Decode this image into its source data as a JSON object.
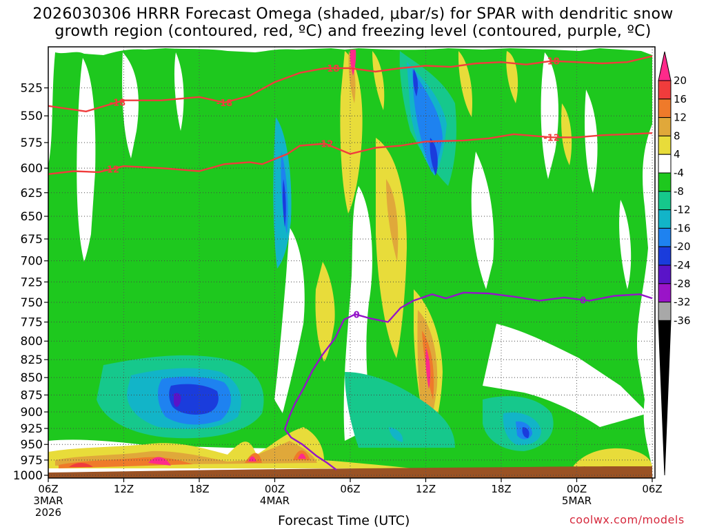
{
  "header": {
    "title_line1": "2026030306 HRRR Forecast Omega (shaded, μbar/s) for SPAR with dendritic snow",
    "title_line2": "growth region (contoured, red, ºC) and freezing level (contoured, purple, ºC)"
  },
  "footer": {
    "xaxis_title": "Forecast Time (UTC)",
    "credit": "coolwx.com/models"
  },
  "chart_data": {
    "type": "heatmap",
    "title": "2026030306 HRRR Forecast Omega (shaded, μbar/s) for SPAR with dendritic snow growth region (contoured, red, ºC) and freezing level (contoured, purple, ºC)",
    "xlabel": "Forecast Time (UTC)",
    "ylabel": "",
    "x_range_hours": [
      0,
      48
    ],
    "y_range_hpa": [
      1000,
      500
    ],
    "y_scale": "log-pressure",
    "grid": true,
    "x_ticks": [
      {
        "hour": 0,
        "label": "06Z",
        "sub1": "3MAR",
        "sub2": "2026"
      },
      {
        "hour": 6,
        "label": "12Z",
        "sub1": "",
        "sub2": ""
      },
      {
        "hour": 12,
        "label": "18Z",
        "sub1": "",
        "sub2": ""
      },
      {
        "hour": 18,
        "label": "00Z",
        "sub1": "4MAR",
        "sub2": ""
      },
      {
        "hour": 24,
        "label": "06Z",
        "sub1": "",
        "sub2": ""
      },
      {
        "hour": 30,
        "label": "12Z",
        "sub1": "",
        "sub2": ""
      },
      {
        "hour": 36,
        "label": "18Z",
        "sub1": "",
        "sub2": ""
      },
      {
        "hour": 42,
        "label": "00Z",
        "sub1": "5MAR",
        "sub2": ""
      },
      {
        "hour": 48,
        "label": "06Z",
        "sub1": "",
        "sub2": ""
      }
    ],
    "y_ticks": [
      525,
      550,
      575,
      600,
      625,
      650,
      675,
      700,
      725,
      750,
      775,
      800,
      825,
      850,
      875,
      900,
      925,
      950,
      975,
      1000
    ],
    "colorbar": {
      "labels": [
        "20",
        "16",
        "12",
        "8",
        "4",
        "-4",
        "-8",
        "-12",
        "-16",
        "-20",
        "-24",
        "-28",
        "-32",
        "-36"
      ],
      "colors": [
        "#ff2a8a",
        "#f03c3c",
        "#ef7a2a",
        "#e0a83a",
        "#e8dc3a",
        "#ffffff",
        "#1ec81e",
        "#16c88c",
        "#12b4c8",
        "#1e82f0",
        "#1a3cdc",
        "#5a14c8",
        "#9a14c8",
        "#a8a8a8",
        "#000000"
      ]
    },
    "omega_features": [
      {
        "name": "low-level ascent core",
        "hour": 11.5,
        "hpa": 885,
        "value": -24
      },
      {
        "name": "mid-level ascent",
        "hour": 18.5,
        "hpa": 640,
        "value": -24
      },
      {
        "name": "upper ascent",
        "hour": 28.5,
        "hpa": 590,
        "value": -24
      },
      {
        "name": "descent core",
        "hour": 30,
        "hpa": 830,
        "value": 20
      },
      {
        "name": "upper descent",
        "hour": 24,
        "hpa": 520,
        "value": 20
      },
      {
        "name": "near-surface descent",
        "hour": 9.5,
        "hpa": 985,
        "value": 20
      },
      {
        "name": "near-surface descent",
        "hour": 19.5,
        "hpa": 975,
        "value": 20
      },
      {
        "name": "near-surface descent",
        "hour": 22,
        "hpa": 975,
        "value": 20
      }
    ],
    "series": [
      {
        "name": "-18",
        "color": "#f03c3c",
        "points": [
          [
            0,
            541
          ],
          [
            3,
            546
          ],
          [
            6,
            536
          ],
          [
            9,
            536
          ],
          [
            12,
            533
          ],
          [
            14,
            538
          ],
          [
            16,
            532
          ],
          [
            18,
            520
          ],
          [
            20,
            512
          ],
          [
            22,
            508
          ],
          [
            24,
            508
          ],
          [
            26,
            511
          ],
          [
            28,
            508
          ],
          [
            30,
            506
          ],
          [
            32,
            507
          ],
          [
            34,
            504
          ],
          [
            36,
            503
          ],
          [
            38,
            505
          ],
          [
            40,
            502
          ],
          [
            42,
            503
          ],
          [
            44,
            504
          ],
          [
            46,
            503
          ],
          [
            48,
            498
          ]
        ]
      },
      {
        "name": "-12",
        "color": "#f03c3c",
        "points": [
          [
            0,
            606
          ],
          [
            2,
            603
          ],
          [
            4,
            604
          ],
          [
            6,
            598
          ],
          [
            9,
            600
          ],
          [
            12,
            603
          ],
          [
            14,
            596
          ],
          [
            16,
            594
          ],
          [
            17,
            596
          ],
          [
            19,
            586
          ],
          [
            20,
            578
          ],
          [
            22,
            576
          ],
          [
            24,
            586
          ],
          [
            26,
            580
          ],
          [
            28,
            578
          ],
          [
            30,
            574
          ],
          [
            33,
            573
          ],
          [
            35,
            571
          ],
          [
            37,
            567
          ],
          [
            40,
            570
          ],
          [
            42,
            570
          ],
          [
            44,
            568
          ],
          [
            46,
            567
          ],
          [
            48,
            566
          ]
        ]
      },
      {
        "name": "0",
        "color": "#9414c8",
        "points": [
          [
            22.9,
            991
          ],
          [
            22.2,
            980
          ],
          [
            21.3,
            968
          ],
          [
            20.2,
            950
          ],
          [
            19.3,
            939
          ],
          [
            18.8,
            926
          ],
          [
            19.2,
            905
          ],
          [
            19.6,
            888
          ],
          [
            20.3,
            865
          ],
          [
            21.0,
            840
          ],
          [
            21.8,
            818
          ],
          [
            22.8,
            796
          ],
          [
            23.5,
            772
          ],
          [
            24.4,
            765
          ],
          [
            25.5,
            770
          ],
          [
            27,
            775
          ],
          [
            28,
            757
          ],
          [
            29,
            748
          ],
          [
            30.5,
            740
          ],
          [
            31.6,
            745
          ],
          [
            33,
            738
          ],
          [
            35,
            739
          ],
          [
            37,
            743
          ],
          [
            39,
            748
          ],
          [
            41,
            744
          ],
          [
            43,
            748
          ],
          [
            45,
            742
          ],
          [
            47,
            740
          ],
          [
            48,
            745
          ]
        ]
      }
    ]
  }
}
